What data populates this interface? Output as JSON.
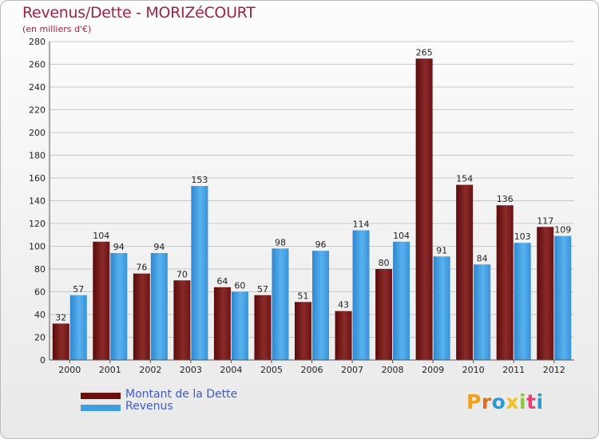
{
  "header": {
    "title": "Revenus/Dette - MORIZéCOURT",
    "subtitle": "(en milliers d'€)"
  },
  "chart_data": {
    "type": "bar",
    "categories": [
      "2000",
      "2001",
      "2002",
      "2003",
      "2004",
      "2005",
      "2006",
      "2007",
      "2008",
      "2009",
      "2010",
      "2011",
      "2012"
    ],
    "series": [
      {
        "name": "Montant de la Dette",
        "color": "#7a1b1b",
        "values": [
          32,
          104,
          76,
          70,
          64,
          57,
          51,
          43,
          80,
          265,
          154,
          136,
          117
        ]
      },
      {
        "name": "Revenus",
        "color": "#3f9de0",
        "values": [
          57,
          94,
          94,
          153,
          60,
          98,
          96,
          114,
          104,
          91,
          84,
          103,
          109
        ]
      }
    ],
    "ylim": [
      0,
      280
    ],
    "yticks": [
      0,
      20,
      40,
      60,
      80,
      100,
      120,
      140,
      160,
      180,
      200,
      220,
      240,
      260,
      280
    ],
    "grid": true,
    "legend": "bottom-left"
  },
  "legend": {
    "items": [
      {
        "label": "Montant de la Dette",
        "color": "#6b0f0f"
      },
      {
        "label": "Revenus",
        "color": "#3f9de0"
      }
    ]
  },
  "logo": {
    "text": "Proxiti",
    "colors": [
      "#f0a020",
      "#e07020",
      "#2a9ad8",
      "#f0c020",
      "#8cc640",
      "#e84070",
      "#2a9ad8"
    ]
  }
}
